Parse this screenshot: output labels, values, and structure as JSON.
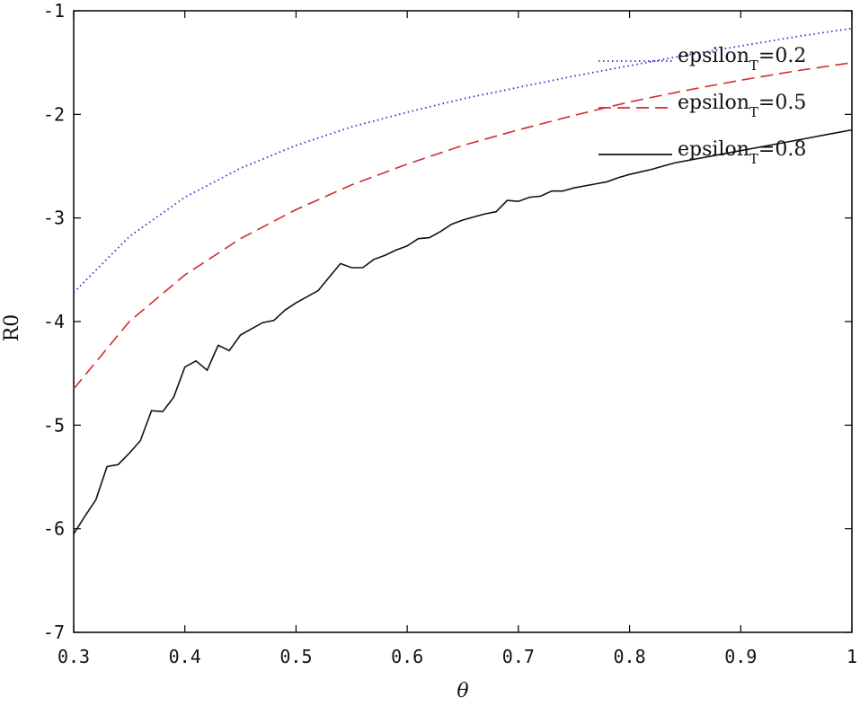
{
  "chart_data": {
    "type": "line",
    "xlabel": "θ",
    "ylabel": "R0",
    "xlim": [
      0.3,
      1.0
    ],
    "ylim": [
      -7,
      -1
    ],
    "xticks": [
      0.3,
      0.4,
      0.5,
      0.6,
      0.7,
      0.8,
      0.9,
      1.0
    ],
    "xtick_labels": [
      "0.3",
      "0.4",
      "0.5",
      "0.6",
      "0.7",
      "0.8",
      "0.9",
      "1"
    ],
    "yticks": [
      -7,
      -6,
      -5,
      -4,
      -3,
      -2,
      -1
    ],
    "ytick_labels": [
      "-7",
      "-6",
      "-5",
      "-4",
      "-3",
      "-2",
      "-1"
    ],
    "grid": false,
    "legend_position": "top-right",
    "series": [
      {
        "name": "epsilon_T=0.2",
        "legend_main": "epsilon",
        "legend_sub": "T",
        "legend_tail": "=0.2",
        "color": "#2b2bd6",
        "style": "dotted",
        "x": [
          0.3,
          0.35,
          0.4,
          0.45,
          0.5,
          0.55,
          0.6,
          0.65,
          0.7,
          0.75,
          0.8,
          0.85,
          0.9,
          0.95,
          1.0
        ],
        "y": [
          -3.72,
          -3.18,
          -2.8,
          -2.52,
          -2.3,
          -2.12,
          -1.98,
          -1.85,
          -1.74,
          -1.63,
          -1.53,
          -1.43,
          -1.34,
          -1.25,
          -1.17
        ]
      },
      {
        "name": "epsilon_T=0.5",
        "legend_main": "epsilon",
        "legend_sub": "T",
        "legend_tail": "=0.5",
        "color": "#d62b2b",
        "style": "dashed",
        "x": [
          0.3,
          0.35,
          0.4,
          0.45,
          0.5,
          0.55,
          0.6,
          0.65,
          0.7,
          0.75,
          0.8,
          0.85,
          0.9,
          0.95,
          1.0
        ],
        "y": [
          -4.65,
          -4.0,
          -3.55,
          -3.2,
          -2.92,
          -2.68,
          -2.48,
          -2.3,
          -2.15,
          -2.01,
          -1.88,
          -1.77,
          -1.67,
          -1.58,
          -1.5
        ]
      },
      {
        "name": "epsilon_T=0.8",
        "legend_main": "epsilon",
        "legend_sub": "T",
        "legend_tail": "=0.8",
        "color": "#111111",
        "style": "solid",
        "x": [
          0.3,
          0.31,
          0.32,
          0.33,
          0.34,
          0.35,
          0.36,
          0.37,
          0.38,
          0.39,
          0.4,
          0.41,
          0.42,
          0.43,
          0.44,
          0.45,
          0.46,
          0.47,
          0.48,
          0.49,
          0.5,
          0.51,
          0.52,
          0.53,
          0.54,
          0.55,
          0.56,
          0.57,
          0.58,
          0.59,
          0.6,
          0.61,
          0.62,
          0.63,
          0.64,
          0.65,
          0.66,
          0.67,
          0.68,
          0.69,
          0.7,
          0.71,
          0.72,
          0.73,
          0.74,
          0.75,
          0.76,
          0.77,
          0.78,
          0.79,
          0.8,
          0.82,
          0.84,
          0.86,
          0.88,
          0.9,
          0.92,
          0.94,
          0.96,
          0.98,
          1.0
        ],
        "y": [
          -6.05,
          -5.88,
          -5.72,
          -5.4,
          -5.38,
          -5.27,
          -5.15,
          -4.86,
          -4.87,
          -4.73,
          -4.44,
          -4.38,
          -4.47,
          -4.23,
          -4.28,
          -4.13,
          -4.07,
          -4.01,
          -3.99,
          -3.89,
          -3.82,
          -3.76,
          -3.7,
          -3.57,
          -3.44,
          -3.48,
          -3.48,
          -3.4,
          -3.36,
          -3.31,
          -3.27,
          -3.2,
          -3.19,
          -3.13,
          -3.06,
          -3.02,
          -2.99,
          -2.96,
          -2.94,
          -2.83,
          -2.84,
          -2.8,
          -2.79,
          -2.74,
          -2.74,
          -2.71,
          -2.69,
          -2.67,
          -2.65,
          -2.61,
          -2.58,
          -2.53,
          -2.47,
          -2.43,
          -2.39,
          -2.35,
          -2.31,
          -2.27,
          -2.23,
          -2.19,
          -2.15
        ]
      }
    ]
  }
}
